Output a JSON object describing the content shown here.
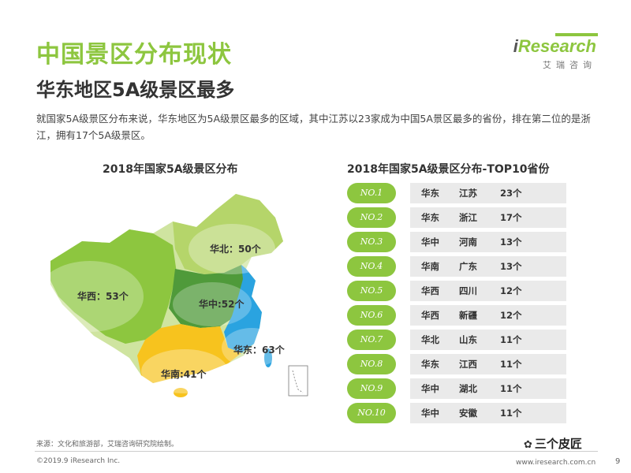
{
  "header": {
    "title": "中国景区分布现状",
    "subtitle": "华东地区5A级景区最多",
    "description": "就国家5A级景区分布来说，华东地区为5A级景区最多的区域，其中江苏以23家成为中国5A景区最多的省份，排在第二位的是浙江，拥有17个5A级景区。"
  },
  "logo": {
    "brand_i": "i",
    "brand_rest": "Research",
    "sub": "艾瑞咨询"
  },
  "map": {
    "title": "2018年国家5A级景区分布",
    "regions": [
      {
        "name": "华北",
        "label": "华北：50个",
        "color": "#b5d56a"
      },
      {
        "name": "华西",
        "label": "华西：53个",
        "color": "#8dc63f"
      },
      {
        "name": "华中",
        "label": "华中:52个",
        "color": "#4f9a3a"
      },
      {
        "name": "华东",
        "label": "华东：63个",
        "color": "#2aa3e0"
      },
      {
        "name": "华南",
        "label": "华南:41个",
        "color": "#f7c31e"
      }
    ]
  },
  "chart_data": [
    {
      "type": "table",
      "title": "2018年国家5A级景区分布",
      "categories": [
        "华北",
        "华西",
        "华中",
        "华东",
        "华南"
      ],
      "values": [
        50,
        53,
        52,
        63,
        41
      ],
      "unit": "个"
    },
    {
      "type": "table",
      "title": "2018年国家5A级景区分布-TOP10省份",
      "rows": [
        {
          "rank": "NO.1",
          "region": "华东",
          "province": "江苏",
          "count": "23个"
        },
        {
          "rank": "NO.2",
          "region": "华东",
          "province": "浙江",
          "count": "17个"
        },
        {
          "rank": "NO.3",
          "region": "华中",
          "province": "河南",
          "count": "13个"
        },
        {
          "rank": "NO.4",
          "region": "华南",
          "province": "广东",
          "count": "13个"
        },
        {
          "rank": "NO.5",
          "region": "华西",
          "province": "四川",
          "count": "12个"
        },
        {
          "rank": "NO.6",
          "region": "华西",
          "province": "新疆",
          "count": "12个"
        },
        {
          "rank": "NO.7",
          "region": "华北",
          "province": "山东",
          "count": "11个"
        },
        {
          "rank": "NO.8",
          "region": "华东",
          "province": "江西",
          "count": "11个"
        },
        {
          "rank": "NO.9",
          "region": "华中",
          "province": "湖北",
          "count": "11个"
        },
        {
          "rank": "NO.10",
          "region": "华中",
          "province": "安徽",
          "count": "11个"
        }
      ]
    }
  ],
  "table": {
    "title": "2018年国家5A级景区分布-TOP10省份"
  },
  "footer": {
    "source": "来源：文化和旅游部，艾瑞咨询研究院绘制。",
    "copyright": "©2019.9 iResearch Inc.",
    "website": "www.iresearch.com.cn",
    "page": "9",
    "watermark": "三个皮匠",
    "watermark_icon": "wechat-icon"
  }
}
